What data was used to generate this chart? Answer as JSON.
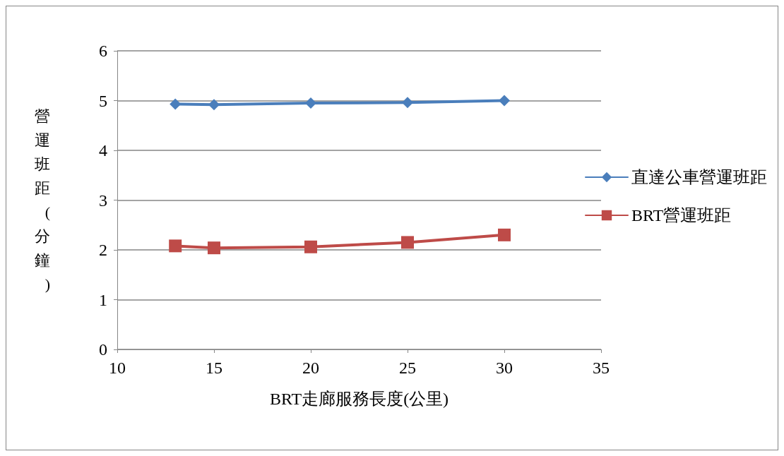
{
  "chart_data": {
    "type": "line",
    "xlabel": "BRT走廊服務長度(公里)",
    "ylabel": "營運班距(分鐘)",
    "xlim": [
      10,
      35
    ],
    "xticks": [
      10,
      15,
      20,
      25,
      30,
      35
    ],
    "ylim": [
      0,
      6
    ],
    "yticks": [
      0,
      1,
      2,
      3,
      4,
      5,
      6
    ],
    "grid": "y",
    "legend": "right",
    "line_style": "solid",
    "series": [
      {
        "name": "直達公車營運班距",
        "color": "#4a7ebb",
        "marker": "diamond",
        "x": [
          13,
          15,
          20,
          25,
          30
        ],
        "values": [
          4.93,
          4.92,
          4.95,
          4.96,
          5.0
        ]
      },
      {
        "name": "BRT營運班距",
        "color": "#be4b48",
        "marker": "square",
        "x": [
          13,
          15,
          20,
          25,
          30
        ],
        "values": [
          2.08,
          2.04,
          2.06,
          2.15,
          2.3
        ]
      }
    ]
  }
}
